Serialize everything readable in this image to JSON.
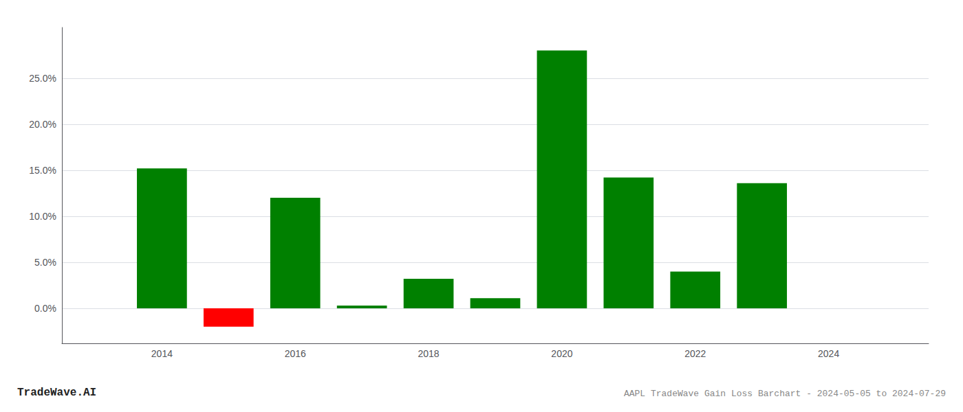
{
  "chart_data": {
    "type": "bar",
    "title": "AAPL TradeWave Gain Loss Barchart - 2024-05-05 to 2024-07-29",
    "annotations": [
      "TradeWave.AI"
    ],
    "x": [
      2014,
      2015,
      2016,
      2017,
      2018,
      2019,
      2020,
      2021,
      2022,
      2023
    ],
    "values": [
      0.152,
      -0.02,
      0.12,
      0.003,
      0.032,
      0.011,
      0.28,
      0.142,
      0.04,
      0.136
    ],
    "colors": [
      "#008000",
      "#ff0000",
      "#008000",
      "#008000",
      "#008000",
      "#008000",
      "#008000",
      "#008000",
      "#008000",
      "#008000"
    ],
    "xlim": [
      2012.5,
      2025.5
    ],
    "xticks": [
      2014,
      2016,
      2018,
      2020,
      2022,
      2024
    ],
    "ylim": [
      -0.038,
      0.305
    ],
    "yticks": [
      {
        "value": 0.0,
        "label": "0.0%"
      },
      {
        "value": 0.05,
        "label": "5.0%"
      },
      {
        "value": 0.1,
        "label": "10.0%"
      },
      {
        "value": 0.15,
        "label": "15.0%"
      },
      {
        "value": 0.2,
        "label": "20.0%"
      },
      {
        "value": 0.25,
        "label": "25.0%"
      }
    ],
    "grid": true
  }
}
